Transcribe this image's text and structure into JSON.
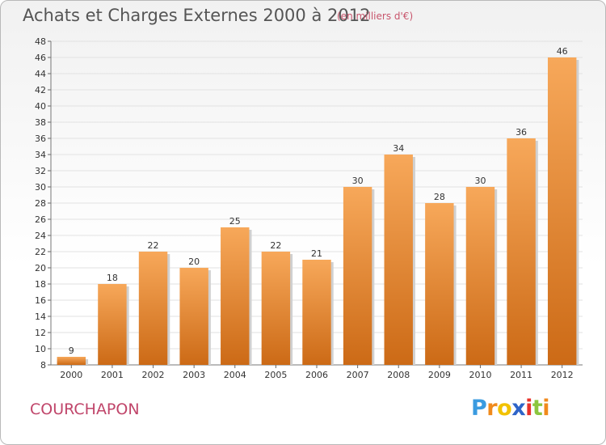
{
  "title": "Achats et Charges Externes 2000 à 2012",
  "subtitle": "(en milliers d'€)",
  "commune": "COURCHAPON",
  "logo": {
    "letters": [
      "P",
      "r",
      "o",
      "x",
      "i",
      "t",
      "i"
    ],
    "colors": [
      "#3a9be0",
      "#f08a1c",
      "#f2c200",
      "#2e64c8",
      "#e8322a",
      "#8cc63f",
      "#f08a1c"
    ]
  },
  "colors": {
    "bar_top": "#f7a85a",
    "bar_bottom": "#cc6a16",
    "title": "#555555",
    "subtitle": "#c8556c",
    "commune": "#c0456a",
    "grid": "#e2e2e2"
  },
  "chart_data": {
    "type": "bar",
    "categories": [
      "2000",
      "2001",
      "2002",
      "2003",
      "2004",
      "2005",
      "2006",
      "2007",
      "2008",
      "2009",
      "2010",
      "2011",
      "2012"
    ],
    "values": [
      9,
      18,
      22,
      20,
      25,
      22,
      21,
      30,
      34,
      28,
      30,
      36,
      46
    ],
    "ylim": [
      8,
      48
    ],
    "yticks": [
      8,
      10,
      12,
      14,
      16,
      18,
      20,
      22,
      24,
      26,
      28,
      30,
      32,
      34,
      36,
      38,
      40,
      42,
      44,
      46,
      48
    ],
    "grid": true,
    "data_labels": true
  }
}
